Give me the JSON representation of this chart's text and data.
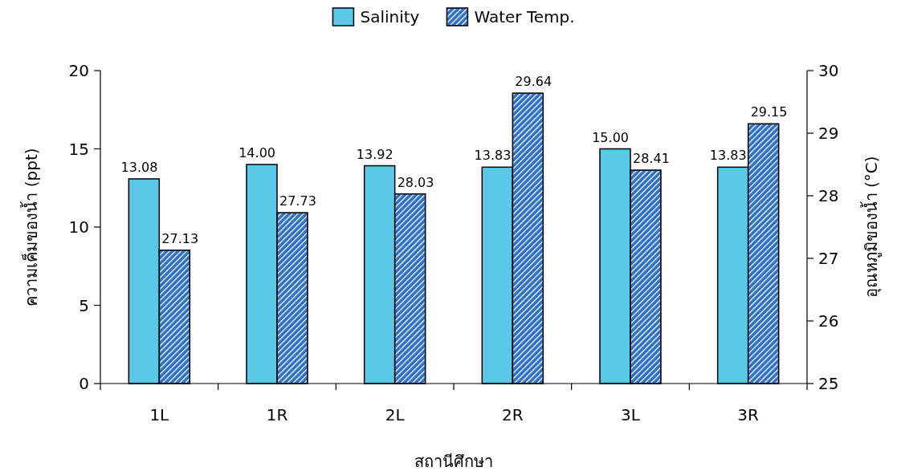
{
  "chart_data": {
    "type": "bar",
    "categories": [
      "1L",
      "1R",
      "2L",
      "2R",
      "3L",
      "3R"
    ],
    "xlabel": "สถานีศึกษา",
    "ylabel": "ความเค็มของน้ำ (ppt)",
    "y2label": "อุณหภูมิของน้ำ (°C)",
    "series": [
      {
        "name": "Salinity",
        "color": "#5bc8e8",
        "values": [
          13.08,
          14.0,
          13.92,
          13.83,
          15.0,
          13.83
        ],
        "value_labels": [
          "13.08",
          "14.00",
          "13.92",
          "13.83",
          "15.00",
          "13.83"
        ]
      },
      {
        "name": "Water Temp.",
        "color": "#2e6fc0",
        "axis": "y2",
        "values": [
          27.13,
          27.73,
          28.03,
          29.64,
          28.41,
          29.15
        ],
        "value_labels": [
          "27.13",
          "27.73",
          "28.03",
          "29.64",
          "28.41",
          "29.15"
        ]
      }
    ],
    "ylim": [
      0,
      20
    ],
    "yticks": [
      0,
      5,
      10,
      15,
      20
    ],
    "y2lim": [
      25,
      30
    ],
    "y2ticks": [
      25,
      26,
      27,
      28,
      29,
      30
    ],
    "legend": "top",
    "grid": false
  }
}
